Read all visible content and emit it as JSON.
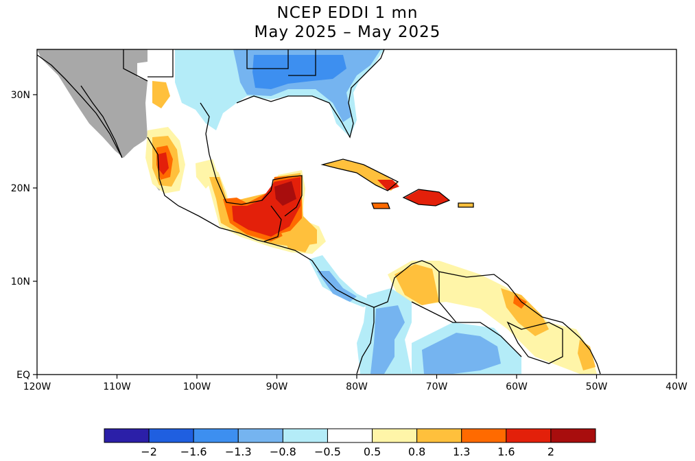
{
  "title": {
    "line1": "NCEP EDDI 1 mn",
    "line2": "May 2025 – May 2025"
  },
  "axes": {
    "lon_labels": [
      "120W",
      "110W",
      "100W",
      "90W",
      "80W",
      "70W",
      "60W",
      "50W",
      "40W"
    ],
    "lat_labels": [
      "30N",
      "20N",
      "10N",
      "EQ"
    ]
  },
  "colorbar": {
    "colors": [
      "#2b1fa8",
      "#1f5fe0",
      "#3d8ff0",
      "#75b4f0",
      "#b4ecf8",
      "#ffffff",
      "#fff5a8",
      "#ffc03c",
      "#ff6a00",
      "#e3200a",
      "#a80d0d"
    ],
    "labels": [
      "−2",
      "−1.6",
      "−1.3",
      "−0.8",
      "−0.5",
      "0.5",
      "0.8",
      "1.3",
      "1.6",
      "2"
    ]
  },
  "map_colors": {
    "no_data": "#a8a8a8",
    "border": "#000000"
  }
}
